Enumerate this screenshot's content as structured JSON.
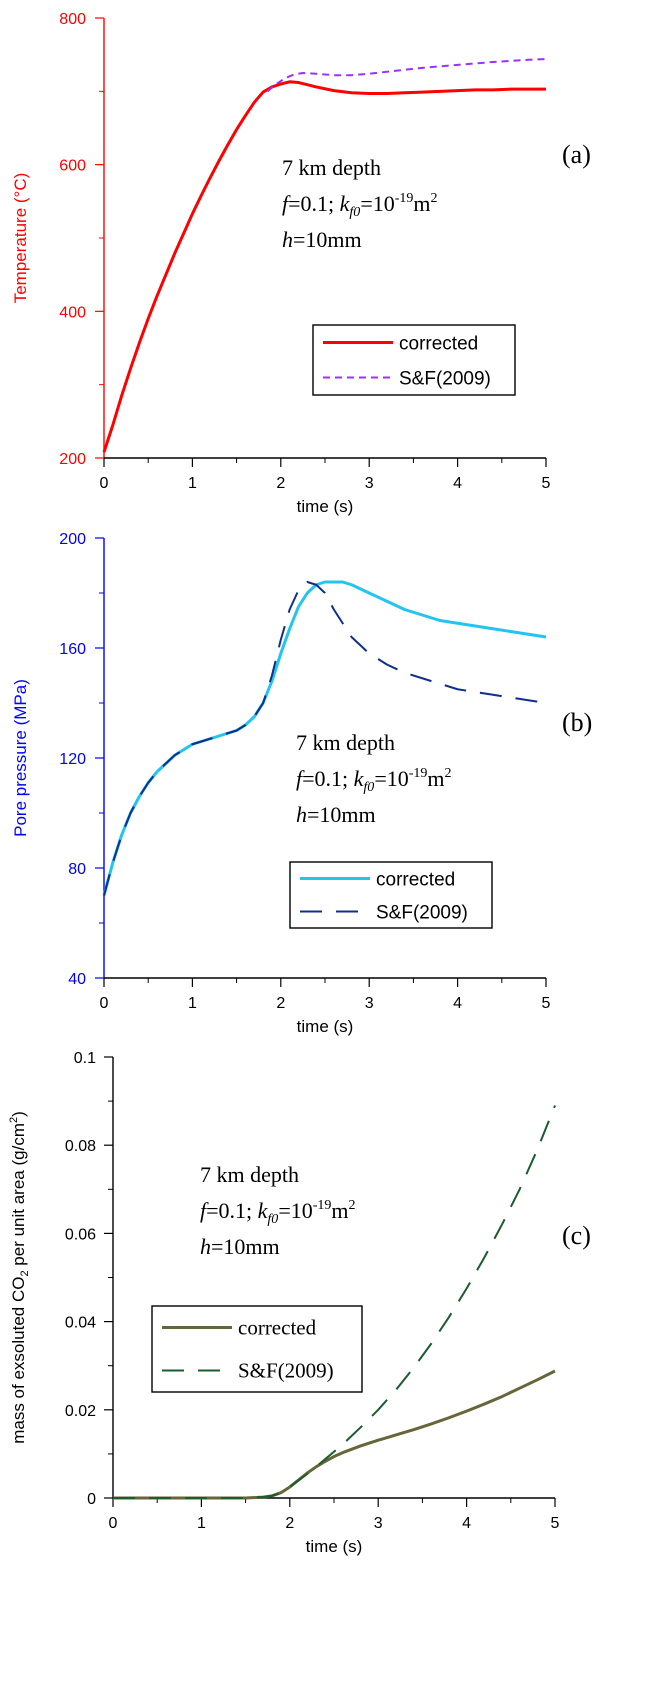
{
  "chart_data": [
    {
      "type": "line",
      "panel_tag": "(a)",
      "ylabel": "Temperature (°C)",
      "xlabel": "time (s)",
      "xlim": [
        0,
        5
      ],
      "ylim": [
        200,
        800
      ],
      "xticks": [
        "0",
        "1",
        "2",
        "3",
        "4",
        "5"
      ],
      "yticks": [
        "200",
        "400",
        "600",
        "800"
      ],
      "axis_color": "#ff0000",
      "annotation": {
        "line1": "7 km depth",
        "line2_f": "f",
        "line2_eq1": "=0.1; ",
        "line2_k": "k",
        "line2_sub": "f0",
        "line2_eq2": "=10",
        "line2_sup": "-19",
        "line2_unit": "m",
        "line2_unit_sup": "2",
        "line3_h": "h",
        "line3_rest": "=10mm"
      },
      "legend_font": "sans",
      "legend": [
        "corrected",
        "S&F(2009)"
      ],
      "series": [
        {
          "name": "corrected",
          "color": "#ff0000",
          "dash": "solid",
          "x": [
            0,
            0.1,
            0.2,
            0.3,
            0.4,
            0.5,
            0.6,
            0.7,
            0.8,
            0.9,
            1.0,
            1.1,
            1.2,
            1.3,
            1.4,
            1.5,
            1.6,
            1.7,
            1.8,
            1.9,
            2.0,
            2.1,
            2.2,
            2.3,
            2.4,
            2.6,
            2.8,
            3.0,
            3.2,
            3.4,
            3.6,
            3.8,
            4.0,
            4.2,
            4.4,
            4.6,
            4.8,
            5.0
          ],
          "y": [
            208,
            245,
            285,
            322,
            357,
            390,
            421,
            450,
            479,
            506,
            533,
            558,
            582,
            605,
            627,
            648,
            667,
            685,
            699,
            706,
            710,
            713,
            712,
            709,
            706,
            701,
            698,
            697,
            697,
            698,
            699,
            700,
            701,
            702,
            702,
            703,
            703,
            703
          ]
        },
        {
          "name": "S&F(2009)",
          "color": "#9b30ff",
          "dash": "short",
          "x": [
            1.85,
            1.95,
            2.05,
            2.15,
            2.25,
            2.4,
            2.6,
            2.8,
            3.0,
            3.3,
            3.6,
            4.0,
            4.4,
            4.8,
            5.0
          ],
          "y": [
            700,
            710,
            718,
            723,
            725,
            724,
            722,
            722,
            724,
            728,
            732,
            736,
            740,
            743,
            744
          ]
        }
      ]
    },
    {
      "type": "line",
      "panel_tag": "(b)",
      "ylabel": "Pore pressure (MPa)",
      "xlabel": "time (s)",
      "xlim": [
        0,
        5
      ],
      "ylim": [
        40,
        200
      ],
      "xticks": [
        "0",
        "1",
        "2",
        "3",
        "4",
        "5"
      ],
      "yticks": [
        "40",
        "80",
        "120",
        "160",
        "200"
      ],
      "axis_color": "#0000ff",
      "annotation": {
        "line1": "7 km depth",
        "line2_f": "f",
        "line2_eq1": "=0.1; ",
        "line2_k": "k",
        "line2_sub": "f0",
        "line2_eq2": "=10",
        "line2_sup": "-19",
        "line2_unit": "m",
        "line2_unit_sup": "2",
        "line3_h": "h",
        "line3_rest": "=10mm"
      },
      "legend_font": "sans",
      "legend": [
        "corrected",
        "S&F(2009)"
      ],
      "series": [
        {
          "name": "corrected",
          "color": "#22c4f0",
          "dash": "solid",
          "x": [
            0,
            0.1,
            0.2,
            0.3,
            0.4,
            0.5,
            0.6,
            0.7,
            0.8,
            0.9,
            1.0,
            1.1,
            1.2,
            1.3,
            1.4,
            1.5,
            1.6,
            1.7,
            1.8,
            1.9,
            2.0,
            2.1,
            2.2,
            2.3,
            2.4,
            2.5,
            2.6,
            2.7,
            2.8,
            3.0,
            3.2,
            3.4,
            3.6,
            3.8,
            4.0,
            4.2,
            4.4,
            4.6,
            4.8,
            5.0
          ],
          "y": [
            70,
            82,
            92,
            100,
            106,
            111,
            115,
            118,
            121,
            123,
            125,
            126,
            127,
            128,
            129,
            130,
            132,
            135,
            140,
            148,
            158,
            167,
            175,
            180,
            183,
            184,
            184,
            184,
            183,
            180,
            177,
            174,
            172,
            170,
            169,
            168,
            167,
            166,
            165,
            164
          ]
        },
        {
          "name": "S&F(2009)",
          "color": "#0f2f8a",
          "dash": "long",
          "x": [
            0,
            0.1,
            0.2,
            0.3,
            0.4,
            0.5,
            0.6,
            0.7,
            0.8,
            0.9,
            1.0,
            1.1,
            1.2,
            1.3,
            1.4,
            1.5,
            1.6,
            1.7,
            1.8,
            1.9,
            2.0,
            2.1,
            2.2,
            2.3,
            2.4,
            2.5,
            2.6,
            2.7,
            2.8,
            3.0,
            3.2,
            3.4,
            3.6,
            3.8,
            4.0,
            4.2,
            4.4,
            4.6,
            4.8,
            5.0
          ],
          "y": [
            70,
            82,
            92,
            100,
            106,
            111,
            115,
            118,
            121,
            123,
            125,
            126,
            127,
            128,
            129,
            130,
            132,
            135,
            140,
            150,
            163,
            174,
            181,
            184,
            183,
            180,
            174,
            169,
            164,
            158,
            154,
            151,
            149,
            147,
            145,
            144,
            143,
            142,
            141,
            140
          ]
        }
      ]
    },
    {
      "type": "line",
      "panel_tag": "(c)",
      "ylabel": "mass of exsoluted CO",
      "ylabel_sub": "2",
      "ylabel_rest": " per unit area (g/cm",
      "ylabel_sup": "2",
      "ylabel_end": ")",
      "xlabel": "time (s)",
      "xlim": [
        0,
        5
      ],
      "ylim": [
        0,
        0.1
      ],
      "xticks": [
        "0",
        "1",
        "2",
        "3",
        "4",
        "5"
      ],
      "yticks": [
        "0",
        "0.02",
        "0.04",
        "0.06",
        "0.08",
        "0.1"
      ],
      "axis_color": "#000000",
      "annotation": {
        "line1": "7 km depth",
        "line2_f": "f",
        "line2_eq1": "=0.1; ",
        "line2_k": "k",
        "line2_sub": "f0",
        "line2_eq2": "=10",
        "line2_sup": "-19",
        "line2_unit": "m",
        "line2_unit_sup": "2",
        "line3_h": "h",
        "line3_rest": "=10mm"
      },
      "legend_font": "serif",
      "legend": [
        "corrected",
        "S&F(2009)"
      ],
      "series": [
        {
          "name": "corrected",
          "color": "#66663a",
          "dash": "solid",
          "x": [
            0,
            1.5,
            1.7,
            1.8,
            1.9,
            2.0,
            2.1,
            2.2,
            2.3,
            2.4,
            2.5,
            2.6,
            2.8,
            3.0,
            3.2,
            3.4,
            3.6,
            3.8,
            4.0,
            4.2,
            4.4,
            4.6,
            4.8,
            5.0
          ],
          "y": [
            0,
            0,
            0.0002,
            0.0005,
            0.0012,
            0.0025,
            0.0041,
            0.0057,
            0.0071,
            0.0083,
            0.0094,
            0.0103,
            0.0118,
            0.0131,
            0.0143,
            0.0155,
            0.0168,
            0.0182,
            0.0197,
            0.0213,
            0.023,
            0.0249,
            0.0268,
            0.0288
          ]
        },
        {
          "name": "S&F(2009)",
          "color": "#1a5c2e",
          "dash": "long",
          "x": [
            0,
            1.5,
            1.7,
            1.8,
            1.9,
            2.0,
            2.2,
            2.4,
            2.6,
            2.8,
            3.0,
            3.2,
            3.4,
            3.6,
            3.8,
            4.0,
            4.2,
            4.4,
            4.6,
            4.8,
            5.0
          ],
          "y": [
            0,
            0,
            0.0002,
            0.0005,
            0.0012,
            0.0025,
            0.0055,
            0.0088,
            0.0122,
            0.016,
            0.02,
            0.0245,
            0.0295,
            0.035,
            0.041,
            0.0475,
            0.0545,
            0.062,
            0.07,
            0.079,
            0.089
          ]
        }
      ]
    }
  ]
}
